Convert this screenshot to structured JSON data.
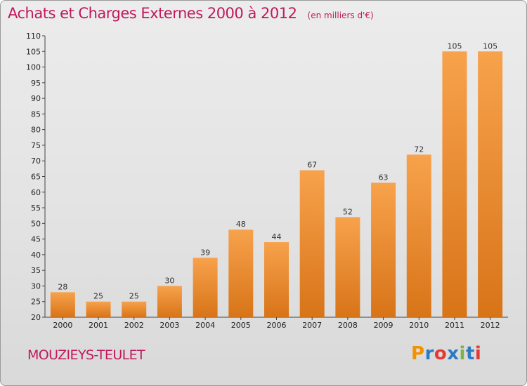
{
  "header": {
    "title": "Achats et Charges Externes 2000 à 2012",
    "subtitle": "(en milliers d'€)"
  },
  "commune": "MOUZIEYS-TEULET",
  "logo": {
    "text": "Proxiti",
    "letters": [
      {
        "char": "P",
        "color": "#f39200"
      },
      {
        "char": "r",
        "color": "#2a7bc4"
      },
      {
        "char": "o",
        "color": "#e53935"
      },
      {
        "char": "x",
        "color": "#2a7bc4"
      },
      {
        "char": "i",
        "color": "#7cb342"
      },
      {
        "char": "t",
        "color": "#2a7bc4"
      },
      {
        "char": "i",
        "color": "#e53935"
      }
    ]
  },
  "colors": {
    "bar_light": "#f7a24c",
    "bar_dark": "#d87418",
    "accent": "#c2185b"
  },
  "chart_data": {
    "type": "bar",
    "title": "Achats et Charges Externes 2000 à 2012",
    "subtitle": "(en milliers d'€)",
    "xlabel": "",
    "ylabel": "",
    "categories": [
      "2000",
      "2001",
      "2002",
      "2003",
      "2004",
      "2005",
      "2006",
      "2007",
      "2008",
      "2009",
      "2010",
      "2011",
      "2012"
    ],
    "values": [
      28,
      25,
      25,
      30,
      39,
      48,
      44,
      67,
      52,
      63,
      72,
      105,
      105
    ],
    "ylim": [
      20,
      110
    ],
    "ytick_step": 5,
    "grid": false,
    "data_labels": true
  }
}
